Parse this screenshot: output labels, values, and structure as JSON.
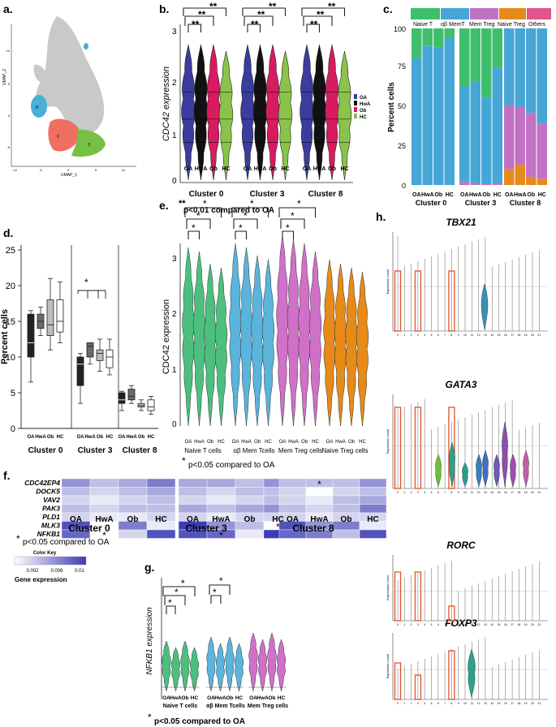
{
  "colors": {
    "oa": "#3a3d9e",
    "hwa": "#111111",
    "ob": "#d81b60",
    "hc": "#8bc34a",
    "green": "#4cbf7f",
    "blue": "#5ab4dc",
    "pink": "#d070c8",
    "orange": "#e68a18",
    "naive_t": "#3fbf6c",
    "ab_mem": "#46a6d6",
    "mem_treg": "#c272c2",
    "naive_treg": "#e48b1c",
    "others": "#e0558c",
    "red_box": "#e0522a",
    "heat_low": "#ffffff",
    "heat_high": "#3c3cb4",
    "umap_gray": "#c9c9c9",
    "umap_blue": "#49b0d9",
    "umap_red": "#ef6f63",
    "umap_green": "#76c043",
    "box_dark": "#222222",
    "box_med": "#6a6a6a",
    "box_light": "#bdbdbd",
    "box_white": "#ffffff"
  },
  "panels": {
    "a": "a.",
    "b": "b.",
    "c": "c.",
    "d": "d.",
    "e": "e.",
    "f": "f.",
    "g": "g.",
    "h": "h."
  },
  "groups": [
    "OA",
    "HwA",
    "Ob",
    "HC"
  ],
  "clusters": [
    "Cluster 0",
    "Cluster 3",
    "Cluster 8"
  ],
  "sig": {
    "pval_01": "p<0.01 compared to OA",
    "pval_05": "p<0.05 compared to OA",
    "double_star": "**",
    "star": "*"
  },
  "panel_a": {
    "type": "scatter",
    "xlabel": "UMAP_1",
    "ylabel": "UMAP_2",
    "xticks": [
      "-10",
      "-5",
      "0",
      "5",
      "10"
    ],
    "yticks": [
      "10",
      "5",
      "0",
      "-5"
    ],
    "cluster_labels": [
      "8",
      "0",
      "3"
    ]
  },
  "chart_data": [
    {
      "id": "b",
      "type": "violin",
      "title": "",
      "ylabel": "CDC42 expression",
      "yticks": [
        "0",
        "1",
        "2",
        "3"
      ],
      "ylim": [
        0,
        3.2
      ],
      "categories": [
        "Cluster 0",
        "Cluster 3",
        "Cluster 8"
      ],
      "legend": [
        "OA",
        "HwA",
        "Ob",
        "HC"
      ],
      "group_labels": [
        "OA",
        "HwA",
        "Ob",
        "HC"
      ],
      "brackets": [
        [
          0,
          1
        ],
        [
          0,
          2
        ],
        [
          0,
          3
        ],
        [
          0,
          1
        ],
        [
          0,
          2
        ],
        [
          0,
          3
        ],
        [
          0,
          1
        ],
        [
          0,
          2
        ],
        [
          0,
          3
        ]
      ],
      "bracket_label": "**"
    },
    {
      "id": "c",
      "type": "stacked_bar",
      "ylabel": "Percent cells",
      "yticks": [
        "0",
        "25",
        "50",
        "75",
        "100"
      ],
      "ylim": [
        0,
        100
      ],
      "legend": [
        "Naive T",
        "αβ MemT",
        "Mem Treg",
        "Naive Treg",
        "Others"
      ],
      "x_labels": [
        "OA",
        "HwA",
        "Ob",
        "HC"
      ],
      "series": [
        {
          "cluster": "Cluster 0",
          "bars": [
            {
              "naive_t": 19,
              "ab_mem": 81
            },
            {
              "naive_t": 11,
              "ab_mem": 89
            },
            {
              "naive_t": 12,
              "ab_mem": 88
            },
            {
              "naive_t": 6,
              "ab_mem": 94
            }
          ]
        },
        {
          "cluster": "Cluster 3",
          "bars": [
            {
              "naive_t": 37,
              "ab_mem": 61,
              "mem_treg": 2
            },
            {
              "naive_t": 34,
              "ab_mem": 65,
              "mem_treg": 1
            },
            {
              "naive_t": 44,
              "ab_mem": 55,
              "mem_treg": 1
            },
            {
              "naive_t": 25,
              "ab_mem": 74,
              "mem_treg": 1
            }
          ]
        },
        {
          "cluster": "Cluster 8",
          "bars": [
            {
              "naive_treg": 10,
              "mem_treg": 41,
              "ab_mem": 49
            },
            {
              "naive_treg": 13,
              "mem_treg": 37,
              "ab_mem": 50
            },
            {
              "naive_treg": 5,
              "mem_treg": 41,
              "ab_mem": 54
            },
            {
              "naive_treg": 4,
              "mem_treg": 35,
              "ab_mem": 61
            }
          ]
        }
      ]
    },
    {
      "id": "d",
      "type": "box",
      "ylabel": "Percent cells",
      "yticks": [
        "0",
        "5",
        "10",
        "15",
        "20",
        "25"
      ],
      "ylim": [
        0,
        25
      ],
      "x_labels": [
        "OA",
        "HwA",
        "Ob",
        "HC"
      ],
      "series": [
        {
          "cluster": "Cluster 0",
          "boxes": [
            {
              "min": 6.5,
              "q1": 10,
              "med": 12,
              "q3": 16,
              "max": 16.5
            },
            {
              "min": 13,
              "q1": 14,
              "med": 15,
              "q3": 16,
              "max": 17
            },
            {
              "min": 11,
              "q1": 13,
              "med": 14.5,
              "q3": 18,
              "max": 21
            },
            {
              "min": 12,
              "q1": 13.5,
              "med": 15,
              "q3": 18,
              "max": 20.5
            }
          ]
        },
        {
          "cluster": "Cluster 3",
          "boxes": [
            {
              "min": 3.5,
              "q1": 6,
              "med": 9,
              "q3": 10,
              "max": 10.5
            },
            {
              "min": 9,
              "q1": 10,
              "med": 11.5,
              "q3": 12,
              "max": 12
            },
            {
              "min": 8,
              "q1": 9.5,
              "med": 10.5,
              "q3": 11,
              "max": 12.5
            },
            {
              "min": 7.5,
              "q1": 8.5,
              "med": 10,
              "q3": 11,
              "max": 12.5
            }
          ]
        },
        {
          "cluster": "Cluster 8",
          "boxes": [
            {
              "min": 2.5,
              "q1": 3.5,
              "med": 4,
              "q3": 5,
              "max": 5.2
            },
            {
              "min": 3.5,
              "q1": 4,
              "med": 4.5,
              "q3": 5.5,
              "max": 6
            },
            {
              "min": 2.5,
              "q1": 3,
              "med": 3.2,
              "q3": 3.5,
              "max": 4
            },
            {
              "min": 2,
              "q1": 2.5,
              "med": 3,
              "q3": 4,
              "max": 4.5
            }
          ]
        }
      ],
      "sig_label": "*"
    },
    {
      "id": "e",
      "type": "violin",
      "ylabel": "CDC42 expression",
      "yticks": [
        "0",
        "1",
        "2",
        "3"
      ],
      "ylim": [
        0,
        3.2
      ],
      "categories": [
        "Naive T cells",
        "αβ Mem Tcells",
        "Mem Treg cells",
        "Naive Treg cells"
      ],
      "group_labels": [
        "OA",
        "HwA",
        "Ob",
        "HC"
      ],
      "bracket_label": "*"
    },
    {
      "id": "f",
      "type": "heatmap",
      "genes": [
        "CDC42EP4",
        "DOCK5",
        "VAV2",
        "PAK3",
        "PLD1",
        "MLK3",
        "NFKB1"
      ],
      "columns": [
        "OA",
        "HwA",
        "Ob",
        "HC"
      ],
      "clusters": [
        "Cluster 0",
        "Cluster 3",
        "Cluster 8"
      ],
      "values": [
        [
          [
            0.006,
            0.004,
            0.005,
            0.007
          ],
          [
            0.004,
            0.003,
            0.004,
            0.005
          ],
          [
            0.003,
            0.002,
            0.003,
            0.004
          ],
          [
            0.004,
            0.003,
            0.004,
            0.004
          ],
          [
            0.003,
            0.002,
            0.002,
            0.003
          ],
          [
            0.009,
            0.001,
            0.007,
            0.002
          ],
          [
            0.008,
            0.001,
            0.003,
            0.009
          ]
        ],
        [
          [
            0.005,
            0.005,
            0.004,
            0.006
          ],
          [
            0.004,
            0.003,
            0.004,
            0.004
          ],
          [
            0.003,
            0.002,
            0.003,
            0.004
          ],
          [
            0.005,
            0.004,
            0.005,
            0.006
          ],
          [
            0.003,
            0.002,
            0.003,
            0.003
          ],
          [
            0.01,
            0.006,
            0.004,
            0.001
          ],
          [
            0.009,
            0.008,
            0.002,
            0.01
          ]
        ],
        [
          [
            0.004,
            0.004,
            0.004,
            0.006
          ],
          [
            0.003,
            0.001,
            0.003,
            0.004
          ],
          [
            0.003,
            0.002,
            0.004,
            0.005
          ],
          [
            0.004,
            0.003,
            0.004,
            0.007
          ],
          [
            0.003,
            0.002,
            0.003,
            0.003
          ],
          [
            0.009,
            0.006,
            0.007,
            0.002
          ],
          [
            0.008,
            0.007,
            0.004,
            0.009
          ]
        ]
      ],
      "stars": [
        [
          0,
          6,
          1
        ],
        [
          1,
          6,
          1
        ],
        [
          1,
          5,
          3
        ],
        [
          2,
          0,
          1
        ]
      ],
      "color_key_title": "Color Key",
      "color_key_ticks": [
        "0.002",
        "0.006",
        "0.01"
      ],
      "color_key_label": "Gene expression"
    },
    {
      "id": "g",
      "type": "violin",
      "ylabel": "NFKB1 expression",
      "categories": [
        "Naive T cells",
        "αβ Mem Tcells",
        "Mem Treg cells"
      ],
      "group_labels": [
        "OA",
        "HwA",
        "Ob",
        "HC"
      ],
      "bracket_label": "*"
    },
    {
      "id": "h",
      "type": "violin_grid",
      "genes": [
        "TBX21",
        "GATA3",
        "RORC",
        "FOXP3"
      ],
      "ylabel": "Expression Level",
      "x_ticks": [
        "0",
        "1",
        "2",
        "3",
        "4",
        "5",
        "6",
        "7",
        "8",
        "9",
        "10",
        "11",
        "12",
        "13",
        "14",
        "15",
        "16",
        "17",
        "18",
        "19",
        "20",
        "21"
      ],
      "highlighted_clusters": [
        "0",
        "3",
        "8"
      ]
    }
  ]
}
